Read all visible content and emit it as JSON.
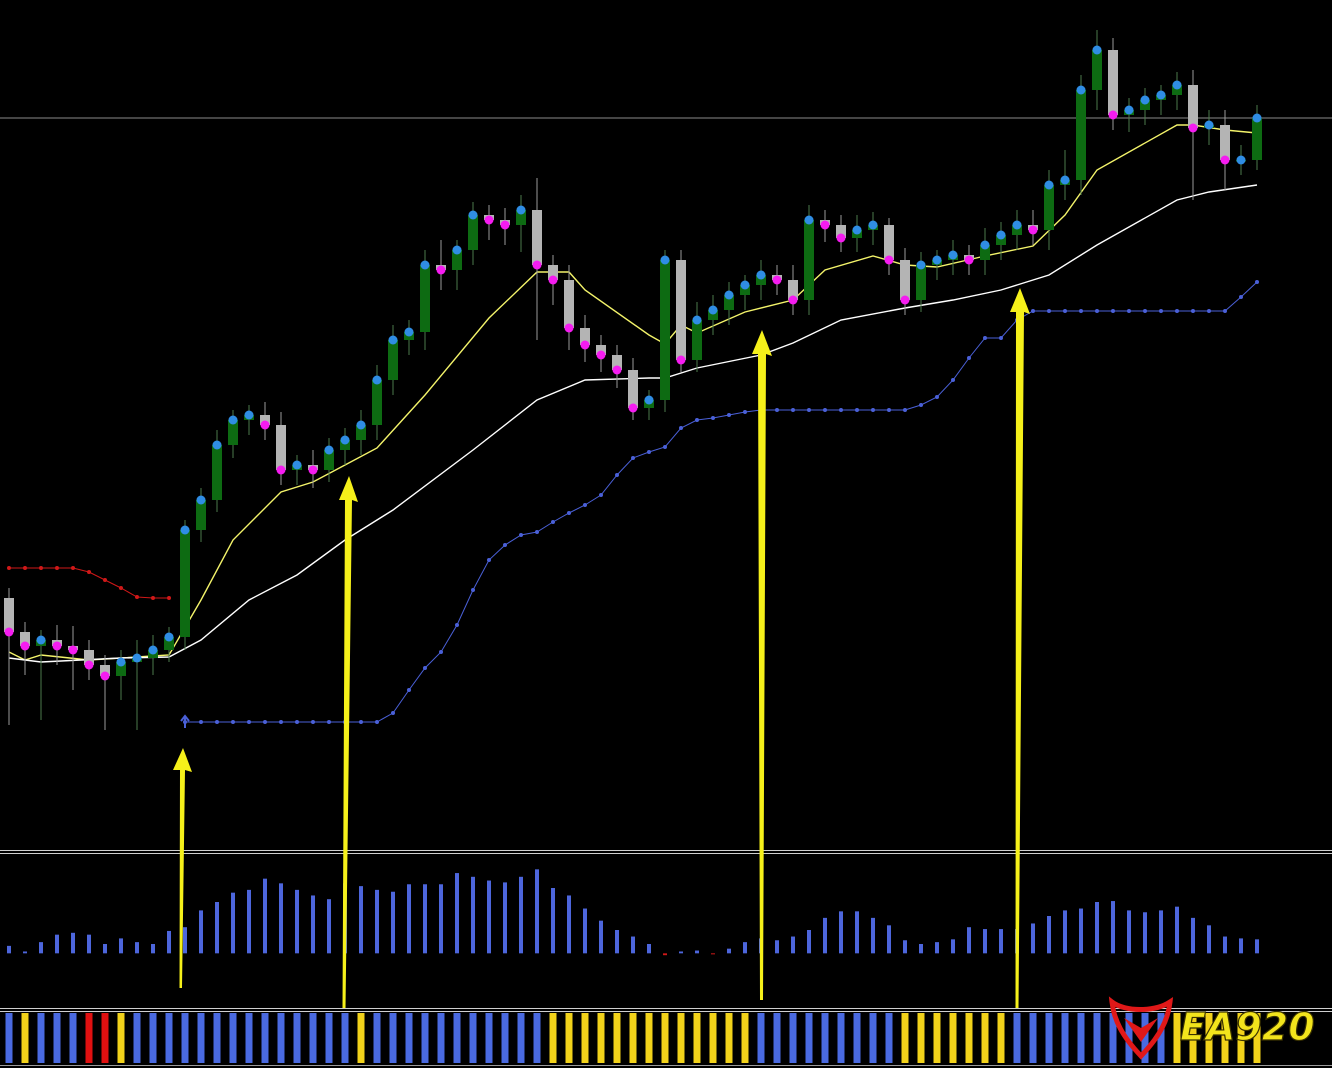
{
  "chart_data": {
    "type": "candlestick",
    "ylim": [
      0,
      850
    ],
    "up_color": "#0d6b12",
    "down_color": "#b4b4b4",
    "rise_dot_color": "#2f8de4",
    "fall_dot_color": "#f51cf0",
    "open": [
      252,
      218,
      204,
      210,
      204,
      200,
      185,
      174,
      188,
      192,
      200,
      213,
      320,
      350,
      405,
      430,
      435,
      425,
      380,
      385,
      380,
      400,
      410,
      425,
      470,
      510,
      518,
      585,
      580,
      600,
      635,
      630,
      625,
      640,
      585,
      570,
      522,
      505,
      495,
      480,
      442,
      450,
      590,
      490,
      530,
      540,
      555,
      565,
      575,
      570,
      550,
      630,
      625,
      612,
      620,
      625,
      590,
      550,
      585,
      590,
      595,
      590,
      605,
      615,
      625,
      620,
      665,
      670,
      760,
      800,
      735,
      740,
      750,
      755,
      765,
      722,
      725,
      690,
      690
    ],
    "high": [
      262,
      228,
      220,
      225,
      224,
      210,
      195,
      200,
      210,
      215,
      223,
      330,
      362,
      420,
      440,
      445,
      448,
      438,
      395,
      400,
      412,
      422,
      440,
      485,
      525,
      530,
      600,
      610,
      610,
      648,
      645,
      642,
      655,
      672,
      595,
      585,
      535,
      515,
      505,
      492,
      460,
      600,
      600,
      548,
      555,
      568,
      575,
      590,
      585,
      585,
      645,
      640,
      635,
      635,
      638,
      632,
      602,
      598,
      600,
      610,
      605,
      622,
      628,
      640,
      640,
      680,
      700,
      775,
      820,
      812,
      752,
      762,
      765,
      778,
      780,
      740,
      740,
      705,
      745
    ],
    "low": [
      125,
      175,
      130,
      185,
      160,
      170,
      120,
      150,
      120,
      175,
      188,
      200,
      308,
      338,
      392,
      415,
      410,
      365,
      365,
      362,
      368,
      385,
      395,
      410,
      455,
      495,
      500,
      560,
      560,
      585,
      610,
      605,
      598,
      510,
      545,
      500,
      488,
      478,
      462,
      430,
      430,
      438,
      478,
      478,
      515,
      525,
      540,
      550,
      555,
      535,
      535,
      608,
      598,
      598,
      605,
      575,
      535,
      538,
      570,
      575,
      575,
      575,
      590,
      600,
      605,
      600,
      650,
      655,
      740,
      720,
      718,
      725,
      735,
      740,
      650,
      705,
      660,
      675,
      680
    ],
    "close": [
      218,
      204,
      210,
      204,
      200,
      185,
      174,
      188,
      192,
      200,
      213,
      320,
      350,
      405,
      430,
      435,
      425,
      380,
      385,
      380,
      400,
      410,
      425,
      470,
      510,
      518,
      585,
      580,
      600,
      635,
      630,
      625,
      640,
      585,
      570,
      522,
      505,
      495,
      480,
      442,
      450,
      590,
      490,
      530,
      540,
      555,
      565,
      575,
      570,
      550,
      630,
      625,
      612,
      620,
      625,
      590,
      550,
      585,
      590,
      595,
      590,
      605,
      615,
      625,
      620,
      665,
      670,
      760,
      800,
      735,
      740,
      750,
      755,
      765,
      722,
      725,
      690,
      690,
      732
    ],
    "lines": [
      {
        "color": "#f3f36a",
        "x": [
          0,
          1,
          2,
          5,
          7,
          10,
          12,
          14,
          17,
          19,
          21,
          23,
          26,
          30,
          33,
          35,
          36,
          40,
          41,
          42,
          43,
          46,
          49,
          51,
          54,
          56,
          58,
          61,
          64,
          66,
          68,
          73,
          74,
          76,
          78
        ],
        "values": [
          198,
          190,
          195,
          190,
          192,
          195,
          250,
          310,
          358,
          368,
          385,
          402,
          455,
          532,
          578,
          578,
          560,
          515,
          506,
          525,
          517,
          538,
          550,
          580,
          594,
          585,
          583,
          594,
          604,
          635,
          680,
          725,
          725,
          720,
          717
        ]
      },
      {
        "color": "#ffffff",
        "x": [
          0,
          2,
          7,
          10,
          12,
          15,
          18,
          21,
          24,
          29,
          33,
          36,
          40,
          41,
          43,
          47,
          49,
          52,
          56,
          59,
          62,
          65,
          68,
          73,
          75,
          78
        ],
        "values": [
          192,
          188,
          192,
          193,
          210,
          250,
          275,
          310,
          340,
          400,
          450,
          470,
          472,
          472,
          482,
          495,
          507,
          530,
          542,
          550,
          560,
          575,
          605,
          650,
          658,
          665
        ]
      }
    ],
    "dotted_lines": [
      {
        "color": "#d01818",
        "values": [
          282,
          282,
          282,
          282,
          282,
          278,
          270,
          262,
          253,
          252,
          252,
          null,
          null,
          null,
          null,
          null,
          null,
          null,
          null,
          null,
          null,
          null,
          null,
          null,
          null,
          null,
          null,
          null,
          null,
          null,
          null,
          null,
          null,
          null,
          null,
          null,
          null,
          null,
          null,
          null,
          null,
          null,
          null,
          null,
          null,
          null,
          null,
          null,
          null,
          null,
          null,
          null,
          null,
          null,
          null,
          null,
          null,
          null,
          null,
          null,
          null,
          null,
          null,
          null,
          null,
          null,
          null,
          null,
          null,
          null,
          null,
          null,
          null,
          null,
          null,
          null,
          null,
          null,
          null
        ]
      },
      {
        "color": "#4a60d8",
        "values": [
          null,
          null,
          null,
          null,
          null,
          null,
          null,
          null,
          null,
          null,
          null,
          128,
          128,
          128,
          128,
          128,
          128,
          128,
          128,
          128,
          128,
          128,
          128,
          128,
          137,
          160,
          182,
          198,
          225,
          260,
          290,
          305,
          315,
          318,
          328,
          337,
          345,
          355,
          375,
          392,
          398,
          403,
          422,
          430,
          432,
          435,
          438,
          440,
          440,
          440,
          440,
          440,
          440,
          440,
          440,
          440,
          440,
          445,
          453,
          470,
          492,
          512,
          512,
          530,
          539,
          539,
          539,
          539,
          539,
          539,
          539,
          539,
          539,
          539,
          539,
          539,
          539,
          553,
          568
        ]
      }
    ],
    "histogram": {
      "ylim": [
        -50,
        100
      ],
      "pos_color": "#4d66dc",
      "neg_color": "#d01818",
      "values": [
        8,
        2,
        12,
        20,
        22,
        20,
        10,
        16,
        12,
        10,
        24,
        28,
        46,
        55,
        65,
        68,
        80,
        75,
        68,
        62,
        58,
        75,
        72,
        68,
        66,
        74,
        74,
        74,
        86,
        82,
        78,
        76,
        82,
        90,
        70,
        62,
        48,
        35,
        25,
        18,
        10,
        -2,
        2,
        3,
        -1,
        5,
        12,
        16,
        14,
        18,
        25,
        38,
        45,
        45,
        38,
        30,
        14,
        10,
        12,
        15,
        28,
        26,
        26,
        26,
        32,
        40,
        46,
        48,
        55,
        56,
        46,
        44,
        46,
        50,
        38,
        30,
        18,
        16,
        15
      ]
    },
    "strip_colors": [
      "#4a6ae0",
      "#f2d21a",
      "#4a6ae0",
      "#4a6ae0",
      "#4a6ae0",
      "#e01010",
      "#e01010",
      "#f2d21a",
      "#4a6ae0",
      "#4a6ae0",
      "#4a6ae0",
      "#4a6ae0",
      "#4a6ae0",
      "#4a6ae0",
      "#4a6ae0",
      "#4a6ae0",
      "#4a6ae0",
      "#4a6ae0",
      "#4a6ae0",
      "#4a6ae0",
      "#4a6ae0",
      "#4a6ae0",
      "#f2d21a",
      "#4a6ae0",
      "#4a6ae0",
      "#4a6ae0",
      "#4a6ae0",
      "#4a6ae0",
      "#4a6ae0",
      "#4a6ae0",
      "#4a6ae0",
      "#4a6ae0",
      "#4a6ae0",
      "#4a6ae0",
      "#f2d21a",
      "#f2d21a",
      "#f2d21a",
      "#f2d21a",
      "#f2d21a",
      "#f2d21a",
      "#f2d21a",
      "#f2d21a",
      "#f2d21a",
      "#f2d21a",
      "#f2d21a",
      "#f2d21a",
      "#f2d21a",
      "#4a6ae0",
      "#4a6ae0",
      "#4a6ae0",
      "#4a6ae0",
      "#4a6ae0",
      "#4a6ae0",
      "#4a6ae0",
      "#4a6ae0",
      "#4a6ae0",
      "#f2d21a",
      "#f2d21a",
      "#f2d21a",
      "#f2d21a",
      "#f2d21a",
      "#f2d21a",
      "#f2d21a",
      "#4a6ae0",
      "#4a6ae0",
      "#4a6ae0",
      "#4a6ae0",
      "#4a6ae0",
      "#4a6ae0",
      "#4a6ae0",
      "#4a6ae0",
      "#4a6ae0",
      "#4a6ae0",
      "#f2d21a",
      "#f2d21a",
      "#f2d21a",
      "#f2d21a",
      "#f2d21a",
      "#f2d21a"
    ]
  },
  "logo": {
    "text": "EA920"
  }
}
